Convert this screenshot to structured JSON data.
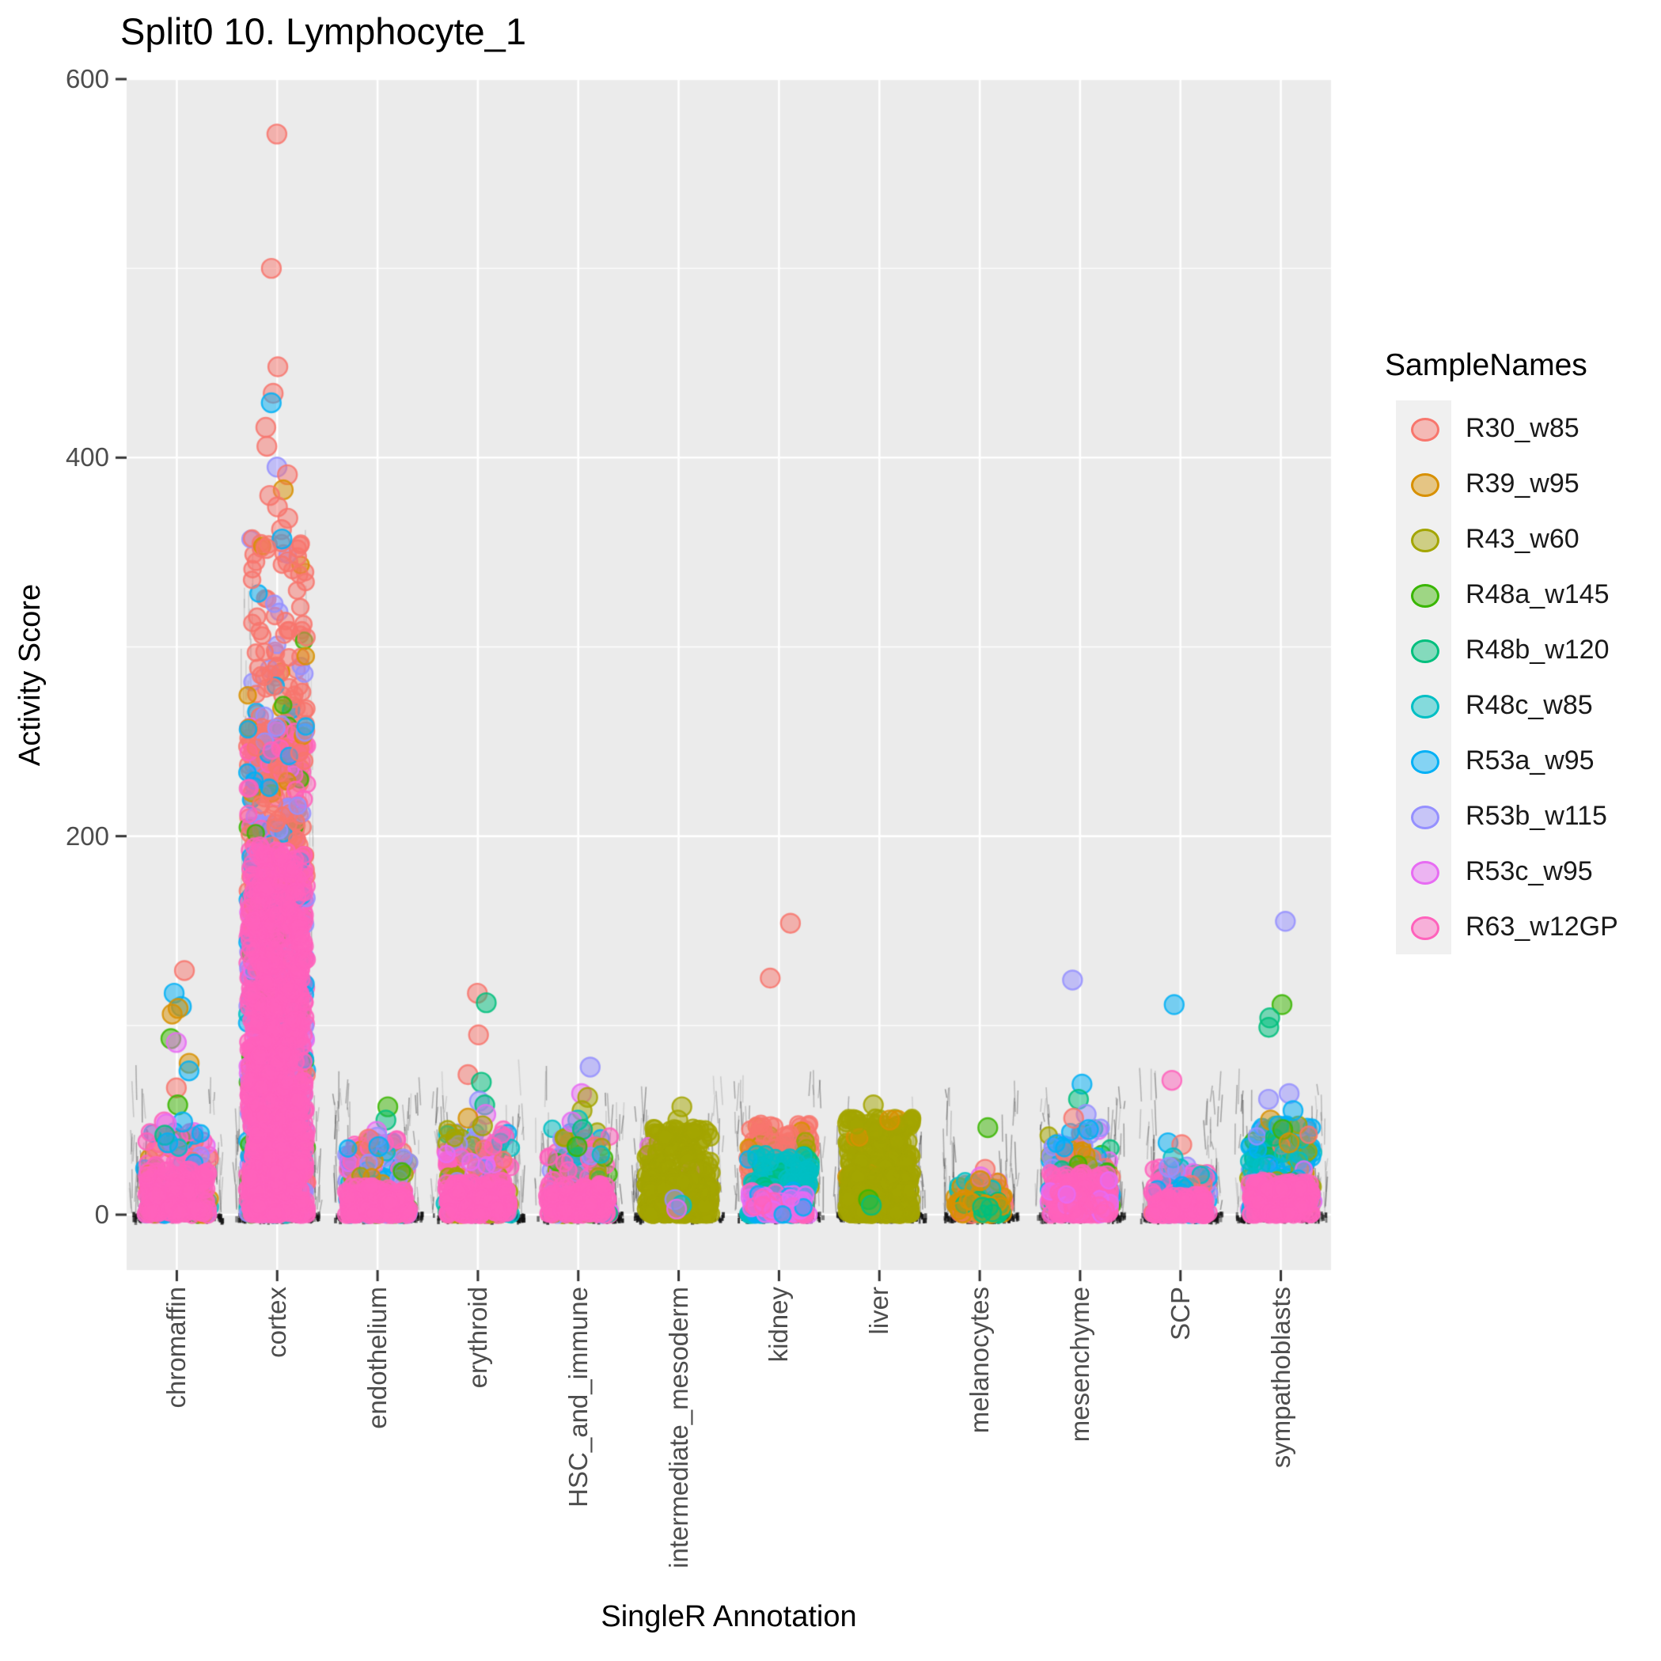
{
  "title": "Split0 10. Lymphocyte_1",
  "axes": {
    "x": {
      "title": "SingleR Annotation",
      "categories": [
        "chromaffin",
        "cortex",
        "endothelium",
        "erythroid",
        "HSC_and_immune",
        "intermediate_mesoderm",
        "kidney",
        "liver",
        "melanocytes",
        "mesenchyme",
        "SCP",
        "sympathoblasts"
      ]
    },
    "y": {
      "title": "Activity Score",
      "ticks": [
        0,
        200,
        400,
        600
      ]
    }
  },
  "legend": {
    "title": "SampleNames",
    "items": [
      {
        "label": "R30_w85",
        "color": "#F8766D"
      },
      {
        "label": "R39_w95",
        "color": "#D89000"
      },
      {
        "label": "R43_w60",
        "color": "#A3A500"
      },
      {
        "label": "R48a_w145",
        "color": "#39B600"
      },
      {
        "label": "R48b_w120",
        "color": "#00BF7D"
      },
      {
        "label": "R48c_w85",
        "color": "#00BFC4"
      },
      {
        "label": "R53a_w95",
        "color": "#00B0F6"
      },
      {
        "label": "R53b_w115",
        "color": "#9590FF"
      },
      {
        "label": "R53c_w95",
        "color": "#E76BF3"
      },
      {
        "label": "R63_w12GP",
        "color": "#FF62BC"
      }
    ]
  },
  "panel": {
    "bg": "#EBEBEB",
    "grid": "#FFFFFF",
    "tick_color": "#333333",
    "tick_label_color": "#4D4D4D"
  },
  "chart_data": {
    "type": "scatter",
    "subtype": "jittered strip plot, one column per category, points colored by sample",
    "title": "Split0 10. Lymphocyte_1",
    "xlabel": "SingleR Annotation",
    "ylabel": "Activity Score",
    "ylim": [
      0,
      600
    ],
    "grid": "major white on grey panel, minor at 100/300/500",
    "legend_position": "right",
    "categories": [
      "chromaffin",
      "cortex",
      "endothelium",
      "erythroid",
      "HSC_and_immune",
      "intermediate_mesoderm",
      "kidney",
      "liver",
      "melanocytes",
      "mesenchyme",
      "SCP",
      "sympathoblasts"
    ],
    "style": {
      "seed": 42,
      "point_radius": 10.5,
      "outlier_radius": 12,
      "fill_alpha": 0.5,
      "stroke_alpha": 0.85
    },
    "clusters": [
      {
        "category": "chromaffin",
        "hw": 42,
        "strata": [
          {
            "n": 190,
            "y": [
              0,
              44
            ],
            "pow": 1.9,
            "w": {
              "R63_w12GP": 0.4,
              "R53a_w95": 0.13,
              "R53b_w115": 0.09,
              "R48c_w85": 0.08,
              "R53c_w95": 0.08,
              "R30_w85": 0.07,
              "R39_w95": 0.05,
              "R43_w60": 0.04,
              "R48a_w145": 0.04,
              "R48b_w120": 0.02
            }
          }
        ],
        "blob": {
          "n": 130,
          "y": [
            0,
            24
          ],
          "pow": 1.4,
          "w": {
            "R63_w12GP": 1
          }
        },
        "outliers": [
          [
            "R30_w85",
            129
          ],
          [
            "R53a_w95",
            117
          ],
          [
            "R53a_w95",
            110
          ],
          [
            "R39_w95",
            109
          ],
          [
            "R39_w95",
            106
          ],
          [
            "R48a_w145",
            93
          ],
          [
            "R53c_w95",
            91
          ],
          [
            "R39_w95",
            80
          ],
          [
            "R53a_w95",
            76
          ],
          [
            "R30_w85",
            67
          ],
          [
            "R48a_w145",
            58
          ],
          [
            "R53a_w95",
            49
          ],
          [
            "R63_w12GP",
            49
          ],
          [
            "R53c_w95",
            48
          ],
          [
            "R48b_w120",
            42
          ],
          [
            "R53a_w95",
            38
          ]
        ]
      },
      {
        "category": "cortex",
        "hw": 38,
        "tall_streaks": true,
        "strata": [
          {
            "n": 150,
            "y": [
              230,
              358
            ],
            "pow": 1.7,
            "w": {
              "R30_w85": 0.75,
              "R53a_w95": 0.09,
              "R39_w95": 0.05,
              "R53b_w115": 0.05,
              "R48a_w145": 0.03,
              "R63_w12GP": 0.03
            }
          },
          {
            "n": 300,
            "y": [
              150,
              260
            ],
            "pow": 1.0,
            "w": {
              "R30_w85": 0.5,
              "R63_w12GP": 0.2,
              "R53a_w95": 0.09,
              "R53b_w115": 0.09,
              "R48a_w145": 0.04,
              "R53c_w95": 0.05,
              "R39_w95": 0.03
            }
          },
          {
            "n": 700,
            "y": [
              0,
              170
            ],
            "pow": 1.6,
            "w": {
              "R63_w12GP": 0.5,
              "R53b_w115": 0.12,
              "R53a_w95": 0.1,
              "R30_w85": 0.08,
              "R48a_w145": 0.07,
              "R53c_w95": 0.08,
              "R48c_w85": 0.05
            }
          }
        ],
        "blob": {
          "n": 650,
          "y": [
            0,
            195
          ],
          "pow": 1.4,
          "w": {
            "R63_w12GP": 1
          }
        },
        "outliers": [
          [
            "R30_w85",
            571
          ],
          [
            "R30_w85",
            500
          ],
          [
            "R30_w85",
            448
          ],
          [
            "R30_w85",
            434
          ],
          [
            "R53a_w95",
            429
          ],
          [
            "R30_w85",
            416
          ],
          [
            "R30_w85",
            406
          ],
          [
            "R53b_w115",
            395
          ],
          [
            "R30_w85",
            391
          ],
          [
            "R39_w95",
            383
          ],
          [
            "R30_w85",
            380
          ],
          [
            "R30_w85",
            374
          ],
          [
            "R30_w85",
            368
          ],
          [
            "R30_w85",
            362
          ],
          [
            "R53a_w95",
            357
          ],
          [
            "R30_w85",
            352
          ],
          [
            "R30_w85",
            345
          ]
        ]
      },
      {
        "category": "endothelium",
        "hw": 40,
        "strata": [
          {
            "n": 190,
            "y": [
              0,
              40
            ],
            "pow": 2.0,
            "w": {
              "R63_w12GP": 0.42,
              "R53a_w95": 0.12,
              "R53b_w115": 0.1,
              "R53c_w95": 0.08,
              "R30_w85": 0.07,
              "R48a_w145": 0.06,
              "R43_w60": 0.06,
              "R39_w95": 0.05,
              "R48c_w85": 0.04
            }
          }
        ],
        "blob": {
          "n": 110,
          "y": [
            0,
            15
          ],
          "pow": 1.4,
          "w": {
            "R63_w12GP": 1
          }
        },
        "outliers": [
          [
            "R48a_w145",
            57
          ],
          [
            "R48b_w120",
            50
          ],
          [
            "R53c_w95",
            44
          ],
          [
            "R53b_w115",
            41
          ],
          [
            "R30_w85",
            40
          ],
          [
            "R53a_w95",
            36
          ]
        ]
      },
      {
        "category": "erythroid",
        "hw": 42,
        "strata": [
          {
            "n": 210,
            "y": [
              0,
              46
            ],
            "pow": 1.9,
            "w": {
              "R63_w12GP": 0.4,
              "R43_w60": 0.15,
              "R53c_w95": 0.1,
              "R53b_w115": 0.08,
              "R53a_w95": 0.07,
              "R48c_w85": 0.07,
              "R39_w95": 0.05,
              "R30_w85": 0.04,
              "R48b_w120": 0.04
            }
          }
        ],
        "blob": {
          "n": 130,
          "y": [
            0,
            18
          ],
          "pow": 1.4,
          "w": {
            "R63_w12GP": 1
          }
        },
        "outliers": [
          [
            "R30_w85",
            117
          ],
          [
            "R48b_w120",
            112
          ],
          [
            "R30_w85",
            95
          ],
          [
            "R30_w85",
            74
          ],
          [
            "R48b_w120",
            70
          ],
          [
            "R53b_w115",
            60
          ],
          [
            "R48b_w120",
            58
          ],
          [
            "R53c_w95",
            53
          ],
          [
            "R39_w95",
            51
          ],
          [
            "R43_w60",
            47
          ]
        ]
      },
      {
        "category": "HSC_and_immune",
        "hw": 40,
        "strata": [
          {
            "n": 200,
            "y": [
              0,
              46
            ],
            "pow": 1.9,
            "w": {
              "R63_w12GP": 0.35,
              "R43_w60": 0.2,
              "R53b_w115": 0.1,
              "R53a_w95": 0.08,
              "R48c_w85": 0.07,
              "R53c_w95": 0.08,
              "R48a_w145": 0.06,
              "R30_w85": 0.03,
              "R48b_w120": 0.03
            }
          }
        ],
        "blob": {
          "n": 120,
          "y": [
            0,
            16
          ],
          "pow": 1.4,
          "w": {
            "R63_w12GP": 1
          }
        },
        "outliers": [
          [
            "R53b_w115",
            78
          ],
          [
            "R53c_w95",
            64
          ],
          [
            "R43_w60",
            62
          ],
          [
            "R43_w60",
            55
          ],
          [
            "R48c_w85",
            50
          ],
          [
            "R53c_w95",
            49
          ],
          [
            "R48b_w120",
            45
          ],
          [
            "R48a_w145",
            36
          ]
        ]
      },
      {
        "category": "intermediate_mesoderm",
        "hw": 42,
        "strata": [
          {
            "n": 280,
            "y": [
              0,
              46
            ],
            "pow": 1.6,
            "w": {
              "R43_w60": 0.95,
              "R53b_w115": 0.02,
              "R53c_w95": 0.02,
              "R39_w95": 0.01
            }
          }
        ],
        "blob": {
          "n": 140,
          "y": [
            0,
            20
          ],
          "pow": 1.4,
          "w": {
            "R43_w60": 1
          }
        },
        "outliers": [
          [
            "R43_w60",
            57
          ],
          [
            "R43_w60",
            50
          ],
          [
            "R53b_w115",
            8
          ],
          [
            "R48c_w85",
            5
          ],
          [
            "R53c_w95",
            3
          ]
        ]
      },
      {
        "category": "kidney",
        "hw": 40,
        "strata": [
          {
            "n": 150,
            "y": [
              14,
              48
            ],
            "pow": 1.4,
            "w": {
              "R30_w85": 0.78,
              "R39_w95": 0.08,
              "R43_w60": 0.07,
              "R48b_w120": 0.07
            }
          },
          {
            "n": 170,
            "y": [
              0,
              32
            ],
            "pow": 1.7,
            "w": {
              "R48c_w85": 0.72,
              "R53a_w95": 0.12,
              "R48b_w120": 0.16
            }
          }
        ],
        "blob": {
          "n": 100,
          "y": [
            0,
            13
          ],
          "pow": 1.4,
          "w": {
            "R53c_w95": 0.45,
            "R63_w12GP": 0.35,
            "R53a_w95": 0.2
          }
        },
        "outliers": [
          [
            "R30_w85",
            154
          ],
          [
            "R30_w85",
            125
          ]
        ]
      },
      {
        "category": "liver",
        "hw": 42,
        "strata": [
          {
            "n": 320,
            "y": [
              0,
              52
            ],
            "pow": 1.5,
            "w": {
              "R43_w60": 0.94,
              "R39_w95": 0.06
            }
          }
        ],
        "blob": {
          "n": 160,
          "y": [
            0,
            22
          ],
          "pow": 1.4,
          "w": {
            "R43_w60": 1
          }
        },
        "outliers": [
          [
            "R43_w60",
            58
          ],
          [
            "R39_w95",
            50
          ],
          [
            "R48a_w145",
            8
          ],
          [
            "R48b_w120",
            5
          ]
        ]
      },
      {
        "category": "melanocytes",
        "hw": 32,
        "strata": [
          {
            "n": 70,
            "y": [
              0,
              18
            ],
            "pow": 1.7,
            "w": {
              "R39_w95": 0.5,
              "R48b_w120": 0.15,
              "R48c_w85": 0.12,
              "R30_w85": 0.1,
              "R53c_w95": 0.07,
              "R63_w12GP": 0.06
            }
          }
        ],
        "blob": {
          "n": 30,
          "y": [
            0,
            8
          ],
          "pow": 1.4,
          "w": {
            "R39_w95": 0.7,
            "R48b_w120": 0.3
          }
        },
        "outliers": [
          [
            "R48a_w145",
            46
          ],
          [
            "R30_w85",
            24
          ],
          [
            "R53c_w95",
            20
          ],
          [
            "R39_w95",
            18
          ],
          [
            "R48b_w120",
            4
          ]
        ]
      },
      {
        "category": "mesenchyme",
        "hw": 40,
        "strata": [
          {
            "n": 170,
            "y": [
              4,
              46
            ],
            "pow": 1.5,
            "w": {
              "R53b_w115": 0.26,
              "R53a_w95": 0.18,
              "R53c_w95": 0.12,
              "R30_w85": 0.12,
              "R39_w95": 0.08,
              "R43_w60": 0.08,
              "R48a_w145": 0.08,
              "R48b_w120": 0.08
            }
          }
        ],
        "blob": {
          "n": 170,
          "y": [
            0,
            22
          ],
          "pow": 1.4,
          "w": {
            "R63_w12GP": 0.9,
            "R53c_w95": 0.1
          }
        },
        "outliers": [
          [
            "R53b_w115",
            124
          ],
          [
            "R53a_w95",
            69
          ],
          [
            "R48b_w120",
            61
          ],
          [
            "R53b_w115",
            53
          ],
          [
            "R30_w85",
            51
          ],
          [
            "R53a_w95",
            45
          ]
        ]
      },
      {
        "category": "SCP",
        "hw": 36,
        "strata": [
          {
            "n": 130,
            "y": [
              0,
              26
            ],
            "pow": 1.7,
            "w": {
              "R63_w12GP": 0.4,
              "R53a_w95": 0.16,
              "R48c_w85": 0.12,
              "R53b_w115": 0.1,
              "R53c_w95": 0.08,
              "R30_w85": 0.08,
              "R48b_w120": 0.06
            }
          }
        ],
        "blob": {
          "n": 90,
          "y": [
            0,
            11
          ],
          "pow": 1.4,
          "w": {
            "R63_w12GP": 1
          }
        },
        "outliers": [
          [
            "R53a_w95",
            111
          ],
          [
            "R63_w12GP",
            71
          ],
          [
            "R53a_w95",
            38
          ],
          [
            "R30_w85",
            37
          ],
          [
            "R48c_w85",
            30
          ],
          [
            "R53b_w115",
            25
          ]
        ]
      },
      {
        "category": "sympathoblasts",
        "hw": 42,
        "strata": [
          {
            "n": 210,
            "y": [
              2,
              48
            ],
            "pow": 1.5,
            "w": {
              "R53a_w95": 0.3,
              "R48c_w85": 0.17,
              "R53b_w115": 0.13,
              "R48b_w120": 0.08,
              "R53c_w95": 0.07,
              "R30_w85": 0.06,
              "R48a_w145": 0.06,
              "R39_w95": 0.06,
              "R43_w60": 0.07
            }
          }
        ],
        "blob": {
          "n": 170,
          "y": [
            0,
            18
          ],
          "pow": 1.4,
          "w": {
            "R63_w12GP": 1
          }
        },
        "outliers": [
          [
            "R53b_w115",
            155
          ],
          [
            "R48a_w145",
            111
          ],
          [
            "R48b_w120",
            104
          ],
          [
            "R48b_w120",
            99
          ],
          [
            "R53b_w115",
            64
          ],
          [
            "R53b_w115",
            61
          ],
          [
            "R53a_w95",
            55
          ],
          [
            "R39_w95",
            50
          ],
          [
            "R53a_w95",
            47
          ],
          [
            "R48a_w145",
            45
          ],
          [
            "R39_w95",
            38
          ]
        ]
      }
    ]
  }
}
